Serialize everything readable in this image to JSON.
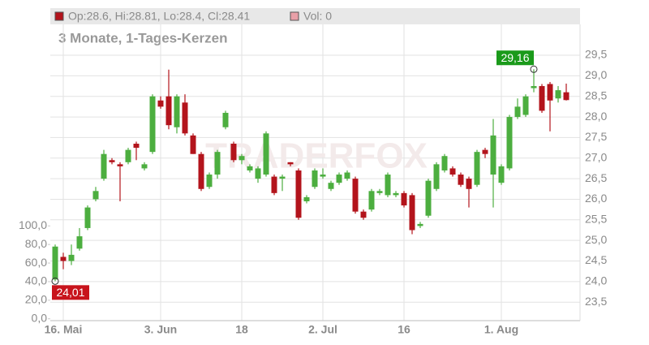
{
  "chart_data": {
    "type": "candlestick",
    "header": {
      "ohlc": "Op:28.6, Hi:28.81, Lo:28.4, Cl:28.41",
      "volume": "Vol: 0",
      "ohlc_color": "#b3141c",
      "volume_color": "#e8a0a8"
    },
    "subtitle": "3 Monate, 1-Tages-Kerzen",
    "watermark": "TRADERFOX",
    "up_color": "#4cae3f",
    "down_color": "#b3141c",
    "grid": true,
    "categories": [
      null,
      "16. Mai",
      null,
      null,
      null,
      null,
      null,
      null,
      null,
      null,
      null,
      null,
      null,
      "3. Jun",
      null,
      null,
      null,
      null,
      null,
      null,
      null,
      null,
      null,
      "18",
      null,
      null,
      null,
      null,
      null,
      null,
      null,
      null,
      null,
      "2. Jul",
      null,
      null,
      null,
      null,
      null,
      null,
      null,
      null,
      null,
      "16",
      null,
      null,
      null,
      null,
      null,
      null,
      null,
      null,
      null,
      null,
      null,
      "1. Aug",
      null,
      null,
      null,
      null,
      null,
      null,
      null,
      null
    ],
    "open": [
      24.05,
      24.6,
      24.5,
      24.8,
      25.3,
      26.0,
      26.5,
      26.95,
      26.85,
      26.9,
      27.35,
      26.75,
      27.15,
      28.4,
      28.5,
      27.75,
      28.35,
      27.55,
      27.1,
      26.3,
      26.6,
      27.75,
      27.35,
      26.95,
      26.7,
      26.5,
      26.6,
      26.55,
      26.5,
      26.9,
      26.7,
      25.95,
      26.3,
      26.55,
      26.25,
      26.4,
      26.5,
      26.5,
      25.7,
      25.75,
      26.15,
      26.1,
      26.1,
      26.15,
      26.1,
      25.35,
      25.6,
      26.25,
      26.7,
      26.75,
      26.6,
      26.5,
      26.35,
      27.2,
      26.6,
      26.4,
      26.75,
      28.0,
      28.05,
      28.7,
      28.75,
      28.8,
      28.45,
      28.6
    ],
    "high": [
      24.9,
      24.7,
      24.9,
      25.3,
      25.85,
      26.3,
      27.2,
      27.0,
      26.9,
      27.25,
      27.4,
      26.9,
      28.55,
      28.5,
      29.15,
      28.55,
      28.55,
      27.6,
      27.15,
      26.65,
      27.2,
      28.15,
      27.4,
      27.1,
      26.85,
      26.8,
      27.65,
      26.6,
      26.6,
      26.9,
      26.75,
      26.1,
      26.75,
      26.75,
      26.45,
      26.65,
      26.7,
      26.55,
      25.75,
      26.25,
      26.25,
      26.65,
      26.2,
      26.2,
      26.15,
      25.45,
      26.5,
      26.9,
      27.1,
      26.8,
      26.65,
      26.55,
      27.2,
      27.25,
      27.95,
      26.85,
      28.05,
      28.45,
      28.55,
      29.16,
      28.8,
      28.85,
      28.75,
      28.81
    ],
    "low": [
      24.01,
      24.3,
      24.4,
      24.75,
      25.25,
      25.95,
      26.45,
      26.85,
      25.95,
      26.85,
      26.95,
      26.7,
      27.1,
      28.2,
      27.7,
      27.6,
      27.55,
      27.1,
      26.2,
      26.25,
      26.5,
      27.7,
      26.9,
      26.85,
      26.65,
      26.4,
      26.55,
      26.1,
      26.2,
      26.8,
      25.5,
      25.9,
      26.25,
      26.5,
      26.2,
      26.35,
      26.45,
      25.65,
      25.5,
      25.7,
      26.1,
      26.05,
      26.05,
      25.8,
      25.15,
      25.3,
      25.55,
      26.2,
      26.65,
      26.55,
      26.3,
      25.8,
      26.3,
      27.0,
      25.8,
      26.35,
      26.7,
      27.95,
      28.0,
      28.6,
      28.1,
      27.65,
      28.35,
      28.4
    ],
    "close": [
      24.85,
      24.5,
      24.65,
      25.1,
      25.8,
      26.2,
      27.1,
      26.9,
      26.8,
      27.2,
      27.25,
      26.85,
      28.5,
      28.25,
      27.8,
      28.5,
      27.6,
      27.1,
      26.25,
      26.6,
      27.15,
      28.1,
      26.95,
      27.05,
      26.8,
      26.75,
      27.6,
      26.15,
      26.55,
      26.85,
      25.55,
      26.05,
      26.7,
      26.6,
      26.4,
      26.6,
      26.65,
      25.7,
      25.55,
      26.2,
      26.2,
      26.6,
      26.15,
      25.85,
      25.25,
      25.4,
      26.45,
      26.85,
      27.05,
      26.6,
      26.35,
      26.25,
      27.15,
      27.1,
      27.55,
      26.8,
      28.0,
      28.25,
      28.5,
      28.75,
      28.15,
      28.4,
      28.65,
      28.41
    ],
    "annotations": [
      {
        "label": "29,16",
        "value": 29.16,
        "color": "#1a9a1a"
      },
      {
        "label": "24,01",
        "value": 24.01,
        "color": "#c8141c"
      }
    ],
    "ylim": [
      23.05,
      30.25
    ],
    "yticks": [
      {
        "value": 23.5,
        "label": "23,5"
      },
      {
        "value": 24,
        "label": "24,0"
      },
      {
        "value": 24.5,
        "label": "24,5"
      },
      {
        "value": 25,
        "label": "25,0"
      },
      {
        "value": 25.5,
        "label": "25,5"
      },
      {
        "value": 26,
        "label": "26,0"
      },
      {
        "value": 26.5,
        "label": "26,5"
      },
      {
        "value": 27,
        "label": "27,0"
      },
      {
        "value": 27.5,
        "label": "27,5"
      },
      {
        "value": 28,
        "label": "28,0"
      },
      {
        "value": 28.5,
        "label": "28,5"
      },
      {
        "value": 29,
        "label": "29,0"
      },
      {
        "value": 29.5,
        "label": "29,5"
      }
    ],
    "y2lim": [
      -2,
      317
    ],
    "y2ticks": [
      {
        "value": 0,
        "label": "0,0"
      },
      {
        "value": 20,
        "label": "20,0"
      },
      {
        "value": 40,
        "label": "40,0"
      },
      {
        "value": 60,
        "label": "60,0"
      },
      {
        "value": 80,
        "label": "80,0"
      },
      {
        "value": 100,
        "label": "100,0"
      }
    ]
  }
}
